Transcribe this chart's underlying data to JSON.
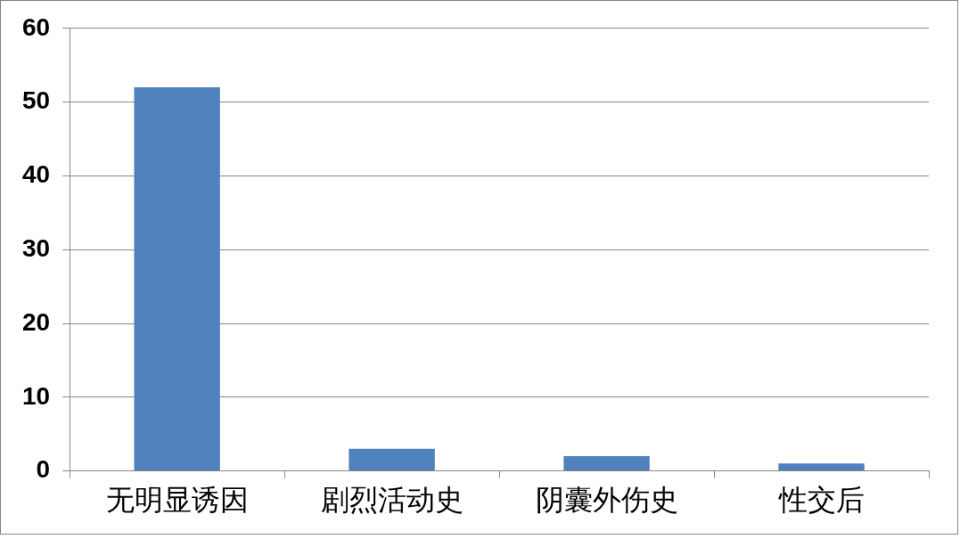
{
  "chart_data": {
    "type": "bar",
    "categories": [
      "无明显诱因",
      "剧烈活动史",
      "阴囊外伤史",
      "性交后"
    ],
    "values": [
      52,
      3,
      2,
      1
    ],
    "color": "#4f81bd",
    "ylim": [
      0,
      60
    ],
    "yticks": [
      0,
      10,
      20,
      30,
      40,
      50,
      60
    ],
    "grid": "y",
    "legend": false
  }
}
